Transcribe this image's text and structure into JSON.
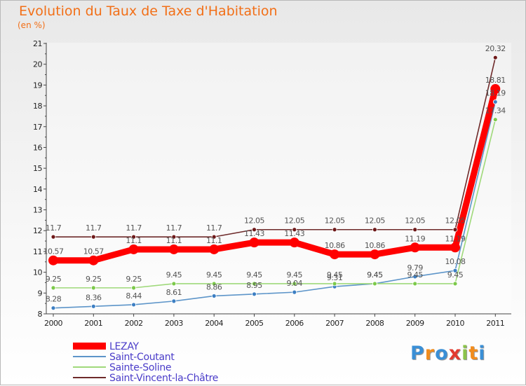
{
  "chart_data": {
    "type": "line",
    "title": "Evolution du Taux de Taxe d'Habitation",
    "unit_label": "(en %)",
    "x": [
      "2000",
      "2001",
      "2002",
      "2003",
      "2004",
      "2005",
      "2006",
      "2007",
      "2008",
      "2009",
      "2010",
      "2011"
    ],
    "ylim": [
      8,
      21
    ],
    "yticks": [
      8,
      9,
      10,
      11,
      12,
      13,
      14,
      15,
      16,
      17,
      18,
      19,
      20,
      21
    ],
    "series": [
      {
        "name": "Saint-Vincent-la-Châtre",
        "color": "#6e2a2a",
        "dot": "#6e1818",
        "values": [
          11.7,
          11.7,
          11.7,
          11.7,
          11.7,
          12.05,
          12.05,
          12.05,
          12.05,
          12.05,
          12.05,
          20.32
        ],
        "labels": [
          "11.7",
          "11.7",
          "11.7",
          "11.7",
          "11.7",
          "12.05",
          "12.05",
          "12.05",
          "12.05",
          "12.05",
          "12.05",
          "20.32"
        ]
      },
      {
        "name": "Saint-Coutant",
        "color": "#5d95c9",
        "dot": "#3d7fc3",
        "values": [
          8.28,
          8.36,
          8.44,
          8.61,
          8.86,
          8.95,
          9.04,
          9.31,
          9.45,
          9.79,
          10.08,
          18.19
        ],
        "labels": [
          "8.28",
          "8.36",
          "8.44",
          "8.61",
          "8.86",
          "8.95",
          "9.04",
          "9.31",
          "9.45",
          "9.79",
          "10.08",
          "18.19"
        ]
      },
      {
        "name": "Sainte-Soline",
        "color": "#9fd97a",
        "dot": "#7cc94a",
        "values": [
          9.25,
          9.25,
          9.25,
          9.45,
          9.45,
          9.45,
          9.45,
          9.45,
          9.45,
          9.45,
          9.45,
          17.34
        ],
        "labels": [
          "9.25",
          "9.25",
          "9.25",
          "9.45",
          "9.45",
          "9.45",
          "9.45",
          "9.45",
          "9.45",
          "9.45",
          "9.45",
          "17.34"
        ]
      },
      {
        "name": "LEZAY",
        "color": "#ff0000",
        "dot": "#ff0000",
        "values": [
          10.57,
          10.57,
          11.1,
          11.1,
          11.1,
          11.43,
          11.43,
          10.86,
          10.86,
          11.19,
          11.19,
          18.81
        ],
        "labels": [
          "10.57",
          "10.57",
          "11.1",
          "11.1",
          "11.1",
          "11.43",
          "11.43",
          "10.86",
          "10.86",
          "11.19",
          "11.19",
          "18.81"
        ]
      }
    ],
    "legend": [
      {
        "name": "LEZAY",
        "color": "#ff0000"
      },
      {
        "name": "Saint-Coutant",
        "color": "#5d95c9"
      },
      {
        "name": "Sainte-Soline",
        "color": "#9fd97a"
      },
      {
        "name": "Saint-Vincent-la-Châtre",
        "color": "#6e2a2a"
      }
    ],
    "legend_position": "bottom-left",
    "text_color": "#4a3cc9"
  },
  "logo": {
    "letters": [
      "P",
      "r",
      "o",
      "x",
      "i",
      "t",
      "i"
    ],
    "colors": [
      "#3a8fd6",
      "#f28c1c",
      "#3a8fd6",
      "#e23a2f",
      "#8bc34a",
      "#f28c1c",
      "#3a8fd6"
    ]
  }
}
